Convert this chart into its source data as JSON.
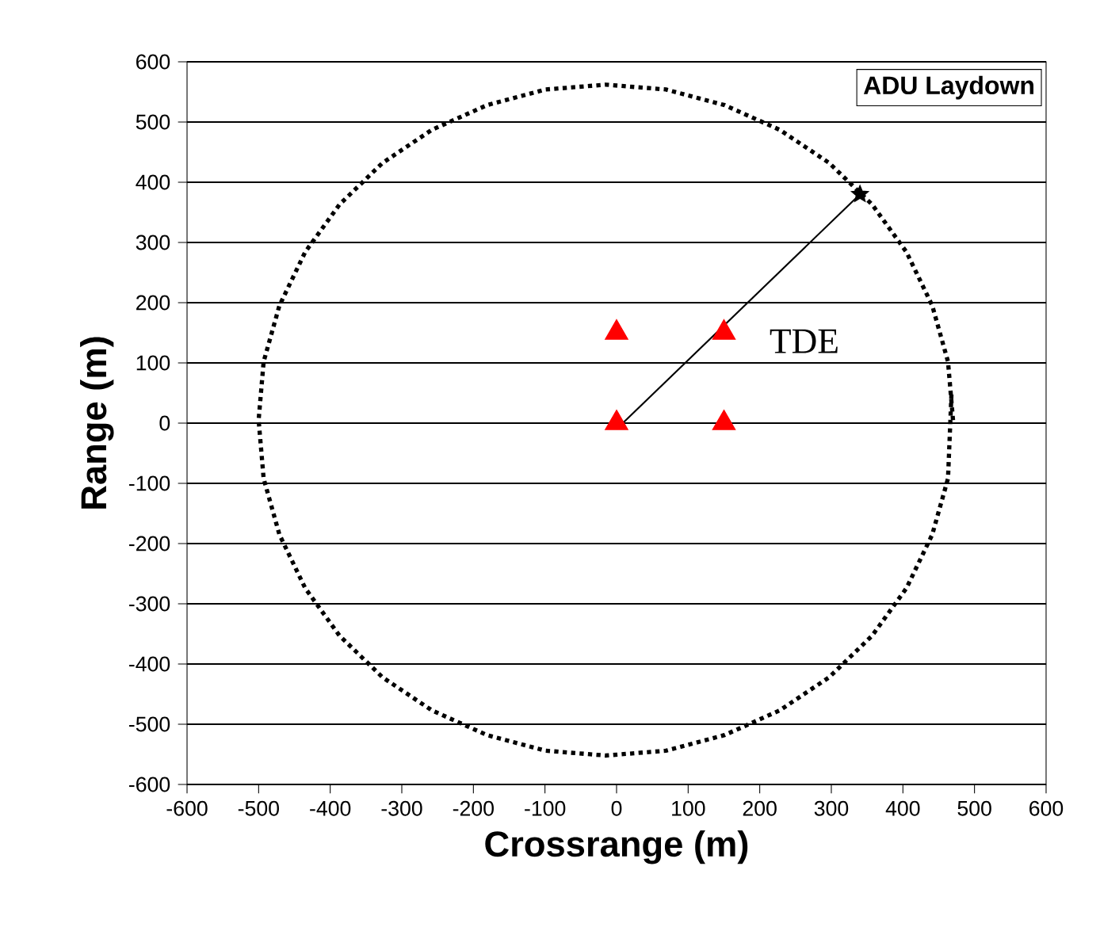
{
  "chart_data": {
    "type": "scatter",
    "title": "ADU Laydown",
    "xlabel": "Crossrange (m)",
    "ylabel": "Range (m)",
    "xlim": [
      -600,
      600
    ],
    "ylim": [
      -600,
      600
    ],
    "xticks": [
      -600,
      -500,
      -400,
      -300,
      -200,
      -100,
      0,
      100,
      200,
      300,
      400,
      500,
      600
    ],
    "yticks": [
      -600,
      -500,
      -400,
      -300,
      -200,
      -100,
      0,
      100,
      200,
      300,
      400,
      500,
      600
    ],
    "grid": "y",
    "annotations": [
      {
        "text": "TDE",
        "x": 150,
        "y": 150
      }
    ],
    "series": [
      {
        "type": "scatter",
        "color": "#ff0000",
        "marker": "triangle",
        "x": [
          0,
          0,
          150,
          150
        ],
        "values": [
          0,
          150,
          150,
          0
        ]
      },
      {
        "type": "line",
        "color": "#000000",
        "marker": "none",
        "line_style": "dotted",
        "x": [
          470,
          463,
          441,
          405,
          357,
          297,
          228,
          151,
          69,
          -15,
          -99,
          -181,
          -258,
          -327,
          -387,
          -435,
          -471,
          -493,
          -500,
          -493,
          -471,
          -435,
          -387,
          -327,
          -258,
          -181,
          -99,
          -15,
          69,
          151,
          228,
          297,
          357,
          405,
          441,
          463,
          468
        ],
        "values": [
          5,
          102,
          195,
          284,
          363,
          432,
          487,
          528,
          554,
          562,
          554,
          528,
          487,
          432,
          363,
          284,
          195,
          102,
          5,
          -92,
          -185,
          -274,
          -353,
          -422,
          -477,
          -518,
          -544,
          -552,
          -544,
          -518,
          -477,
          -422,
          -353,
          -274,
          -185,
          -92,
          54
        ]
      },
      {
        "type": "line",
        "color": "#000000",
        "marker": "none",
        "line_style": "solid",
        "x": [
          0,
          340
        ],
        "values": [
          -10,
          380
        ]
      },
      {
        "type": "scatter",
        "color": "#000000",
        "marker": "star",
        "x": [
          340
        ],
        "values": [
          380
        ]
      }
    ]
  }
}
